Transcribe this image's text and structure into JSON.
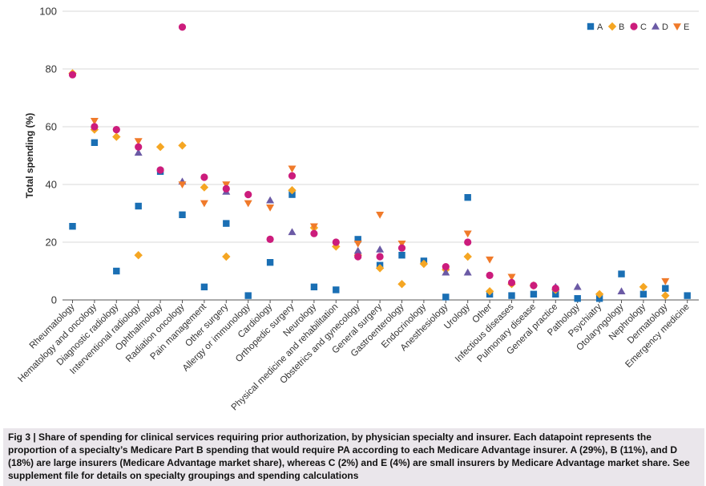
{
  "chart_data": {
    "type": "scatter",
    "ylabel": "Total spending (%)",
    "ylim": [
      0,
      100
    ],
    "yticks": [
      0,
      20,
      40,
      60,
      80,
      100
    ],
    "categories": [
      "Rheumatology",
      "Hematology and oncology",
      "Diagnostic radiology",
      "Interventional radiology",
      "Ophthalmology",
      "Radiation oncology",
      "Pain management",
      "Other surgery",
      "Allergy or immunology",
      "Cardiology",
      "Orthopedic surgery",
      "Neurology",
      "Physical medicine and rehabilitation",
      "Obstetrics and gynecology",
      "General surgery",
      "Gastroenterology",
      "Endocrinology",
      "Anesthesiology",
      "Urology",
      "Other",
      "Infectious diseases",
      "Pulmonary disease",
      "General practice",
      "Pathology",
      "Psychiatry",
      "Otolaryngology",
      "Nephrology",
      "Dermatology",
      "Emergency medicine"
    ],
    "legend_position": "top-right",
    "series": [
      {
        "name": "A",
        "marker": "square",
        "color": "#1a6fb4",
        "values": [
          25.5,
          54.5,
          10,
          32.5,
          44.5,
          29.5,
          4.5,
          26.5,
          1.5,
          13,
          36.5,
          4.5,
          3.5,
          21,
          12,
          15.5,
          13.5,
          1,
          35.5,
          2,
          1.5,
          2,
          2,
          0.5,
          0.5,
          9,
          2,
          4,
          1.5
        ]
      },
      {
        "name": "B",
        "marker": "diamond",
        "color": "#f5a623",
        "values": [
          78.5,
          59,
          56.5,
          15.5,
          53,
          53.5,
          39,
          15,
          null,
          null,
          38,
          25,
          18.5,
          15.5,
          11,
          5.5,
          12.5,
          10.5,
          15,
          3,
          5.5,
          5,
          3.5,
          null,
          2,
          null,
          4.5,
          1.5,
          null
        ]
      },
      {
        "name": "C",
        "marker": "circle",
        "color": "#cc1c7c",
        "values": [
          78,
          60,
          59,
          53,
          45,
          94.5,
          42.5,
          38.5,
          36.5,
          21,
          43,
          23,
          20,
          15,
          15,
          18,
          null,
          11.5,
          20,
          8.5,
          6,
          5,
          4,
          null,
          null,
          null,
          null,
          null,
          null
        ]
      },
      {
        "name": "D",
        "marker": "triangle",
        "color": "#6b5aa5",
        "values": [
          null,
          null,
          null,
          51,
          null,
          41,
          null,
          37.5,
          null,
          34.5,
          23.5,
          null,
          null,
          17,
          17.5,
          null,
          null,
          9.5,
          9.5,
          null,
          null,
          null,
          4.5,
          4.5,
          null,
          3,
          null,
          null,
          null
        ]
      },
      {
        "name": "E",
        "marker": "triangle-down",
        "color": "#f07a2a",
        "values": [
          null,
          62,
          null,
          55,
          null,
          40,
          33.5,
          40,
          33.5,
          32,
          45.5,
          25.5,
          null,
          19.5,
          29.5,
          19.5,
          null,
          null,
          23,
          14,
          8,
          null,
          null,
          null,
          null,
          null,
          null,
          6.5,
          null
        ]
      }
    ]
  },
  "caption": {
    "text": "Fig 3 | Share of spending for clinical services requiring prior authorization, by physician specialty and insurer. Each datapoint represents the proportion of a specialty’s Medicare Part B spending that would require PA according to each Medicare Advantage insurer. A (29%), B (11%), and D (18%) are large insurers (Medicare Advantage market share), whereas C (2%) and E (4%) are small insurers by Medicare Advantage market share. See supplement file for details on specialty groupings and spending calculations"
  }
}
